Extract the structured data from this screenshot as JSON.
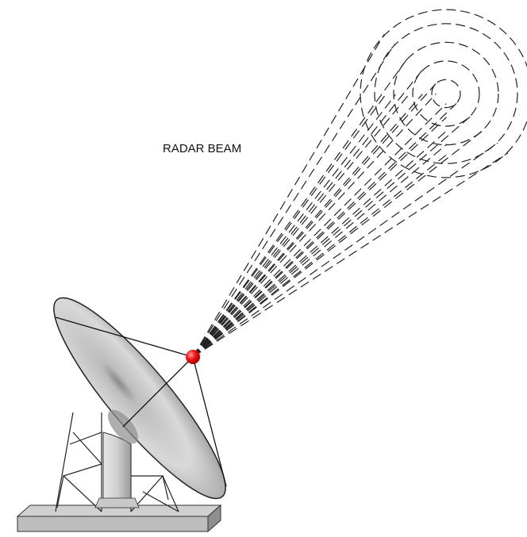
{
  "label": "RADAR BEAM"
}
